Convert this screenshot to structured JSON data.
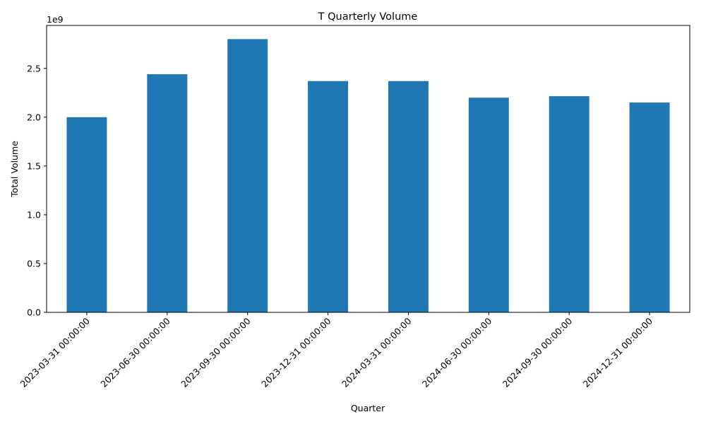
{
  "chart_data": {
    "type": "bar",
    "title": "T Quarterly Volume",
    "xlabel": "Quarter",
    "ylabel": "Total Volume",
    "offset_label": "1e9",
    "categories": [
      "2023-03-31 00:00:00",
      "2023-06-30 00:00:00",
      "2023-09-30 00:00:00",
      "2023-12-31 00:00:00",
      "2024-03-31 00:00:00",
      "2024-06-30 00:00:00",
      "2024-09-30 00:00:00",
      "2024-12-31 00:00:00"
    ],
    "series": [
      {
        "values": [
          2.0,
          2.44,
          2.8,
          2.37,
          2.37,
          2.2,
          2.215,
          2.15
        ],
        "color": "#1f77b4"
      }
    ],
    "ylim": [
      0,
      2.94
    ],
    "yticks": [
      0.0,
      0.5,
      1.0,
      1.5,
      2.0,
      2.5
    ],
    "ytick_labels": [
      "0.0",
      "0.5",
      "1.0",
      "1.5",
      "2.0",
      "2.5"
    ],
    "grid": false,
    "legend": "none"
  }
}
